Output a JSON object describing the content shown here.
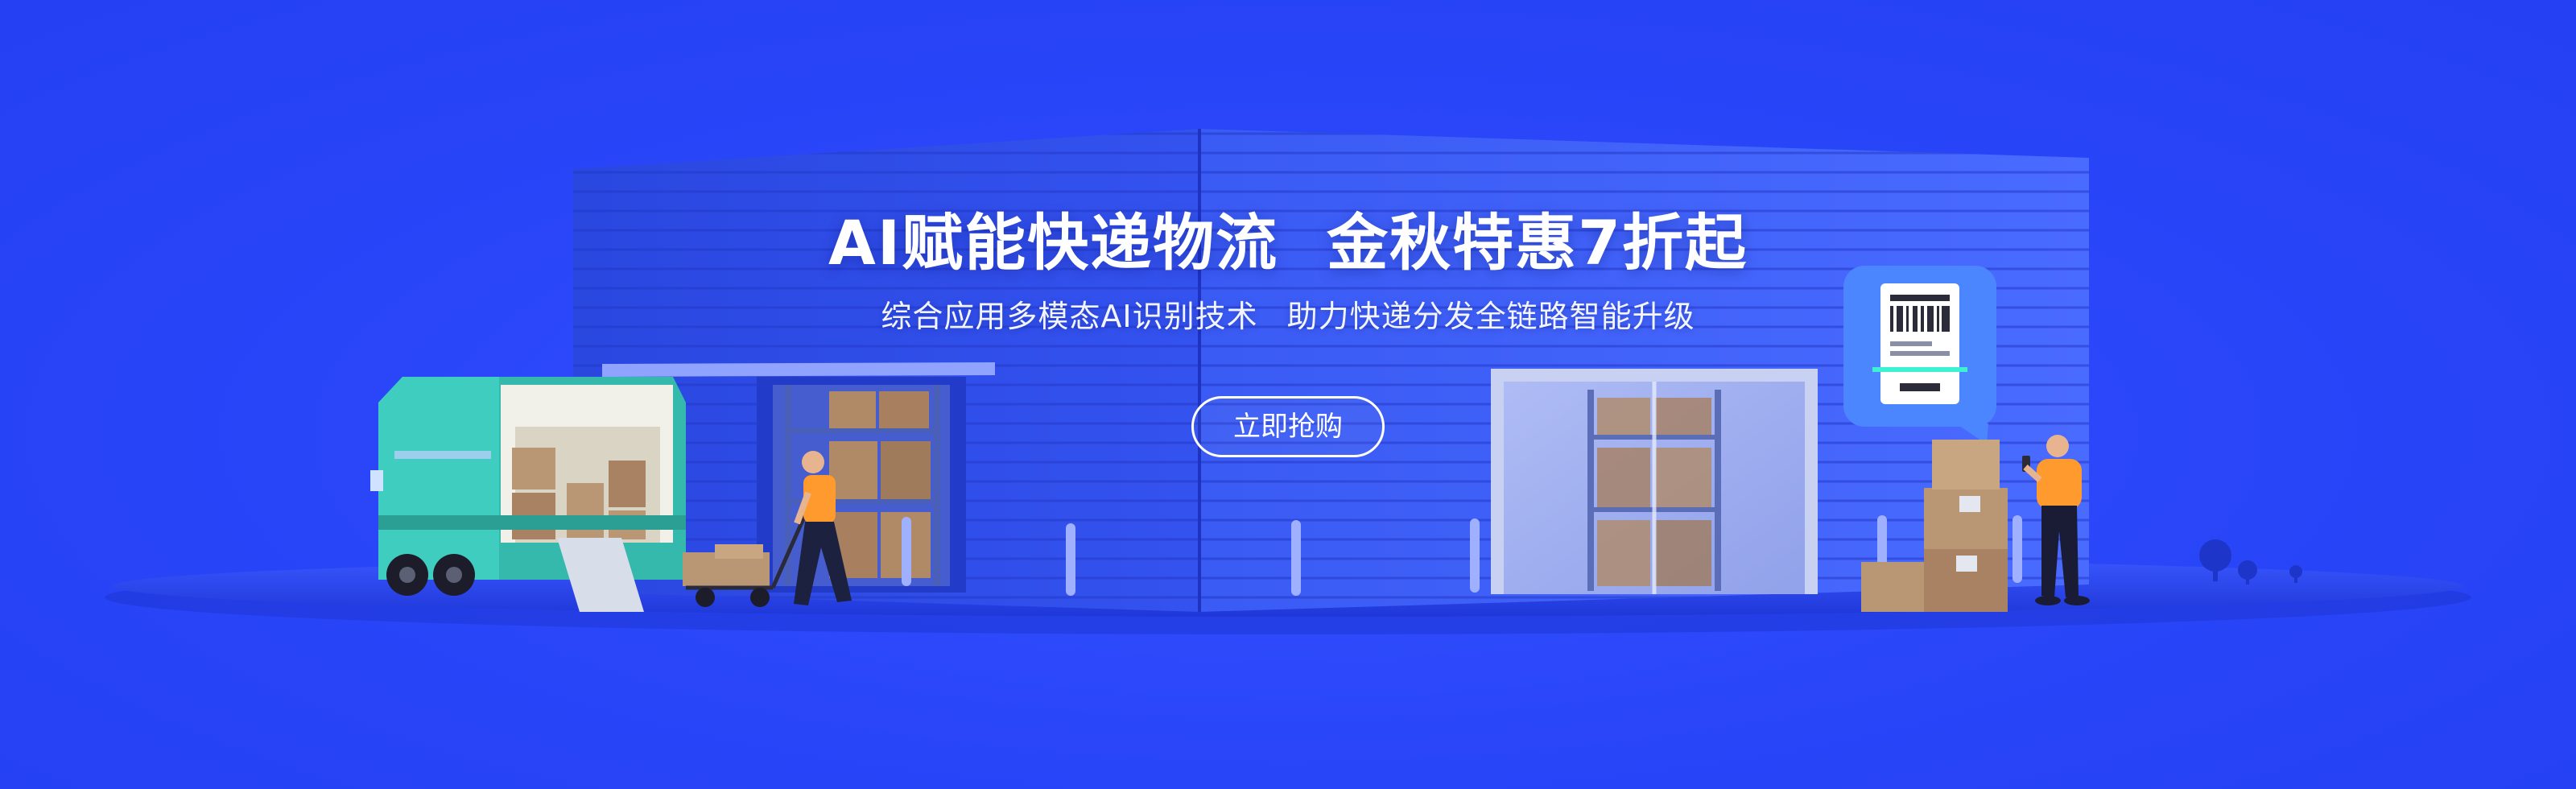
{
  "banner": {
    "headline_part1": "AI赋能快递物流",
    "headline_part2": "金秋特惠7折起",
    "subtitle_part1": "综合应用多模态AI识别技术",
    "subtitle_part2": "助力快递分发全链路智能升级",
    "cta_label": "立即抢购"
  },
  "colors": {
    "background": "#2a46f8",
    "warehouse": "#2f4fe6",
    "truck": "#3cc6b8",
    "accent_orange": "#ff9a2e"
  }
}
